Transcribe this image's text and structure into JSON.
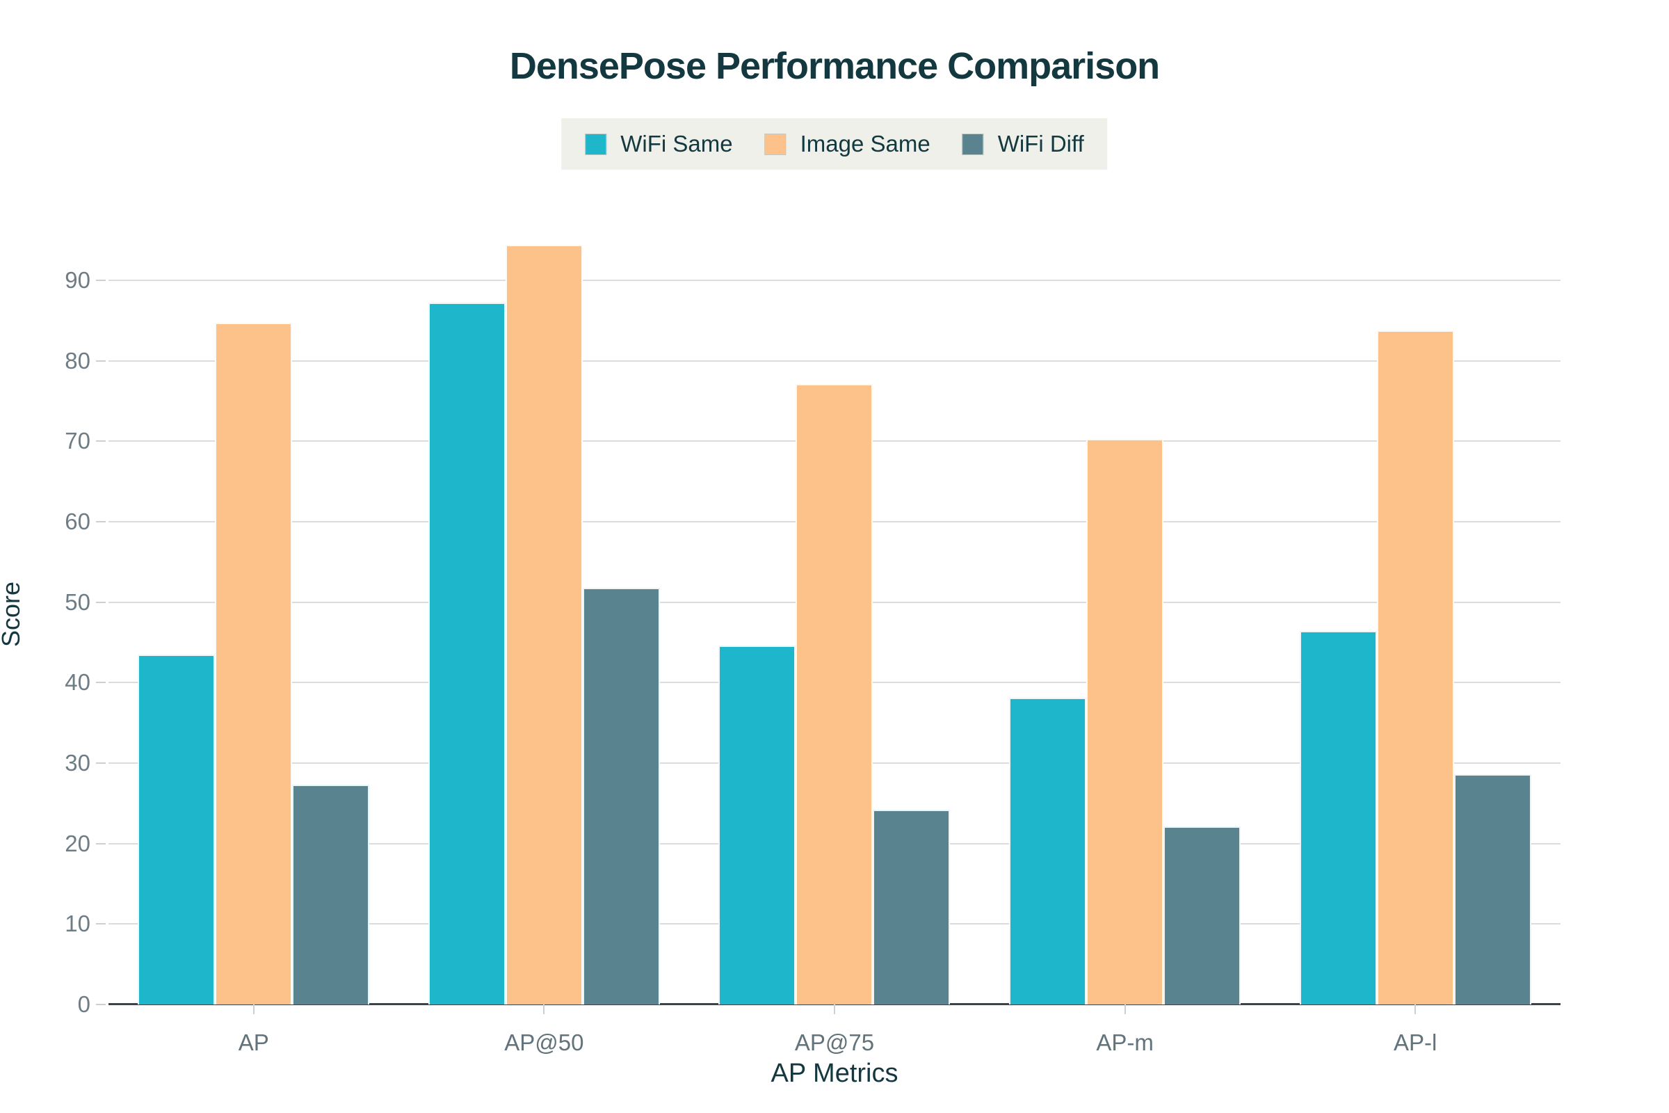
{
  "chart_data": {
    "type": "bar",
    "title": "DensePose Performance Comparison",
    "xlabel": "AP Metrics",
    "ylabel": "Score",
    "categories": [
      "AP",
      "AP@50",
      "AP@75",
      "AP-m",
      "AP-l"
    ],
    "series": [
      {
        "name": "WiFi Same",
        "color": "#1eb6ca",
        "values": [
          43.5,
          87.2,
          44.6,
          38.1,
          46.4
        ]
      },
      {
        "name": "Image Same",
        "color": "#fdc289",
        "values": [
          84.7,
          94.4,
          77.1,
          70.3,
          83.8
        ]
      },
      {
        "name": "WiFi Diff",
        "color": "#58838f",
        "values": [
          27.3,
          51.8,
          24.2,
          22.1,
          28.6
        ]
      }
    ],
    "ylim": [
      0,
      97
    ],
    "yticks": [
      0,
      10,
      20,
      30,
      40,
      50,
      60,
      70,
      80,
      90
    ],
    "grid": true,
    "legend_position": "top-center"
  },
  "colors": {
    "title_text": "#14383f",
    "axis_title_text": "#14383f",
    "tick_label_text": "#6e7d85",
    "gridline": "#dcdcdc",
    "axis_line": "#3b4248",
    "legend_background": "#eef0e9",
    "page_background": "#ffffff"
  }
}
